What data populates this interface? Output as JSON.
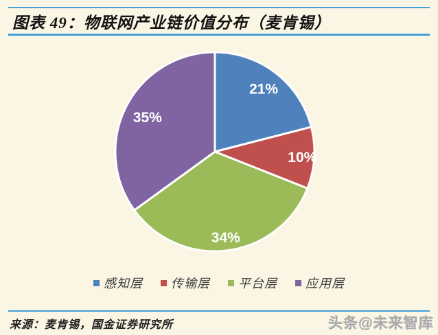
{
  "page": {
    "background": "#FBF5E4",
    "accent_color": "#3FA0DA"
  },
  "header": {
    "title": "图表 49：物联网产业链价值分布（麦肯锡）"
  },
  "chart_data": {
    "type": "pie",
    "title": "物联网产业链价值分布（麦肯锡）",
    "categories": [
      "感知层",
      "传输层",
      "平台层",
      "应用层"
    ],
    "values": [
      21,
      10,
      34,
      35
    ],
    "unit": "%",
    "slice_labels": [
      "21%",
      "10%",
      "34%",
      "35%"
    ],
    "colors": [
      "#4F81BD",
      "#C0504D",
      "#9BBB59",
      "#8064A2"
    ],
    "start_angle_deg": 0,
    "direction": "clockwise",
    "slice_border_color": "#FFFFFF",
    "label_color": "#FFFFFF",
    "legend_position": "bottom"
  },
  "footer": {
    "source": "来源：麦肯锡，国金证券研究所",
    "watermark": "头条@未来智库"
  }
}
